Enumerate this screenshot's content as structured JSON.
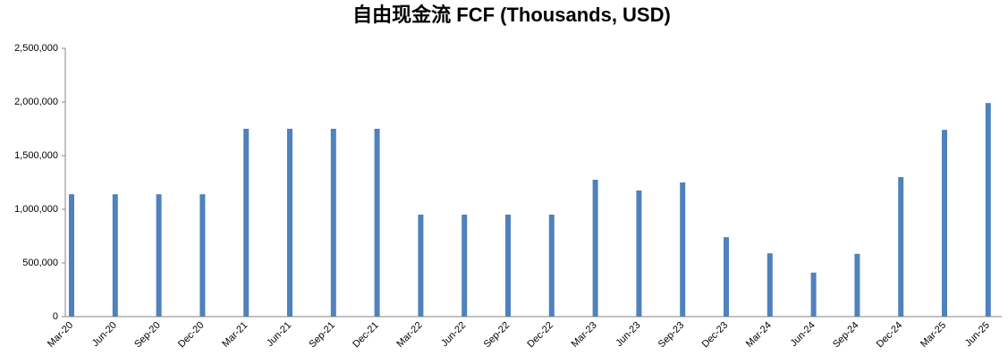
{
  "chart_data": {
    "type": "bar",
    "title": "自由现金流 FCF (Thousands, USD)",
    "categories": [
      "Mar-20",
      "Jun-20",
      "Sep-20",
      "Dec-20",
      "Mar-21",
      "Jun-21",
      "Sep-21",
      "Dec-21",
      "Mar-22",
      "Jun-22",
      "Sep-22",
      "Dec-22",
      "Mar-23",
      "Jun-23",
      "Sep-23",
      "Dec-23",
      "Mar-24",
      "Jun-24",
      "Sep-24",
      "Dec-24",
      "Mar-25",
      "Jun-25"
    ],
    "values": [
      1140000,
      1140000,
      1140000,
      1140000,
      1750000,
      1750000,
      1750000,
      1750000,
      950000,
      950000,
      950000,
      950000,
      1275000,
      1175000,
      1250000,
      740000,
      590000,
      410000,
      585000,
      1300000,
      1740000,
      1990000
    ],
    "color": "#4f81bd",
    "ylim": [
      0,
      2500000
    ],
    "yticks": [
      0,
      {
        "value": 500000,
        "label": "500,000"
      },
      {
        "value": 1000000,
        "label": "1,000,000"
      },
      {
        "value": 1500000,
        "label": "1,500,000"
      },
      {
        "value": 2000000,
        "label": "2,000,000"
      },
      {
        "value": 2500000,
        "label": "2,500,000"
      }
    ],
    "grid": false
  }
}
